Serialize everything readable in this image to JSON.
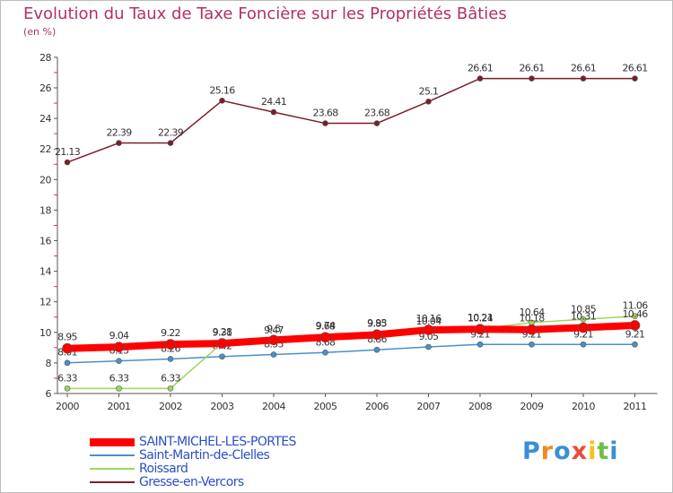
{
  "title": "Evolution du Taux de Taxe Foncière sur les Propriétés Bâties",
  "subtitle": "(en %)",
  "logo": {
    "letters": [
      "P",
      "r",
      "o",
      "x",
      "i",
      "t",
      "i"
    ],
    "colors": [
      "#3a8fd6",
      "#f08a1a",
      "#3a8fd6",
      "#e84c3d",
      "#f0c419",
      "#6cc04a",
      "#3a8fd6"
    ]
  },
  "chart_data": {
    "type": "line",
    "categories": [
      "2000",
      "2001",
      "2002",
      "2003",
      "2004",
      "2005",
      "2006",
      "2007",
      "2008",
      "2009",
      "2010",
      "2011"
    ],
    "ylim": [
      6,
      28
    ],
    "yticks": [
      "6",
      "8",
      "10",
      "12",
      "14",
      "16",
      "18",
      "20",
      "22",
      "24",
      "26",
      "28"
    ],
    "grid": false,
    "legend_position": "bottom-left",
    "series": [
      {
        "name": "Gresse-en-Vercors",
        "color": "#7b1e2b",
        "values": [
          21.13,
          22.39,
          22.39,
          25.16,
          24.41,
          23.68,
          23.68,
          25.1,
          26.61,
          26.61,
          26.61,
          26.61
        ],
        "labels": [
          "21.13",
          "22.39",
          "22.39",
          "25.16",
          "24.41",
          "23.68",
          "23.68",
          "25.1",
          "26.61",
          "26.61",
          "26.61",
          "26.61"
        ]
      },
      {
        "name": "Saint-Martin-de-Clelles",
        "color": "#4a90c8",
        "values": [
          8.01,
          8.13,
          8.26,
          8.42,
          8.55,
          8.68,
          8.86,
          9.05,
          9.21,
          9.21,
          9.21,
          9.21
        ],
        "labels": [
          "8.01",
          "8.13",
          "8.26",
          "8.42",
          "8.55",
          "8.68",
          "8.86",
          "9.05",
          "9.21",
          "9.21",
          "9.21",
          "9.21"
        ]
      },
      {
        "name": "Roissard",
        "color": "#9ad85a",
        "values": [
          6.33,
          6.33,
          6.33,
          9.31,
          9.47,
          9.74,
          9.93,
          10.04,
          10.24,
          10.64,
          10.85,
          11.06
        ],
        "labels": [
          "6.33",
          "6.33",
          "6.33",
          "9.31",
          "9.47",
          "9.74",
          "9.93",
          "10.04",
          "10.24",
          "10.64",
          "10.85",
          "11.06"
        ]
      },
      {
        "name": "SAINT-MICHEL-LES-PORTES",
        "color": "#ff0000",
        "values": [
          8.95,
          9.04,
          9.22,
          9.28,
          9.5,
          9.68,
          9.85,
          10.16,
          10.21,
          10.18,
          10.31,
          10.46
        ],
        "labels": [
          "8.95",
          "9.04",
          "9.22",
          "9.28",
          "9.5",
          "9.68",
          "9.85",
          "10.16",
          "10.21",
          "10.18",
          "10.31",
          "10.46"
        ]
      }
    ],
    "legend": [
      {
        "name": "SAINT-MICHEL-LES-PORTES",
        "color": "#ff0000",
        "width": 9
      },
      {
        "name": "Saint-Martin-de-Clelles",
        "color": "#4a90c8",
        "width": 2
      },
      {
        "name": "Roissard",
        "color": "#9ad85a",
        "width": 2
      },
      {
        "name": "Gresse-en-Vercors",
        "color": "#7b1e2b",
        "width": 2
      }
    ]
  }
}
